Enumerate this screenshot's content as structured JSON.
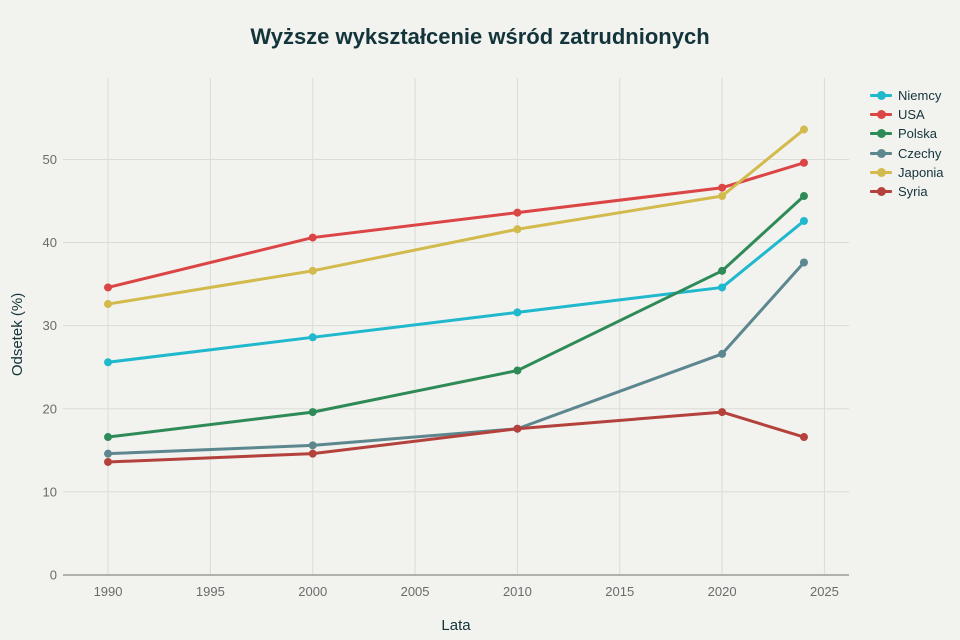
{
  "chart_data": {
    "type": "line",
    "title": "Wyższe wykształcenie wśród zatrudnionych",
    "xlabel": "Lata",
    "ylabel": "Odsetek (%)",
    "x": [
      1990,
      2000,
      2010,
      2020,
      2024
    ],
    "xlim": [
      1987.8,
      2026.2
    ],
    "ylim": [
      0,
      59.8
    ],
    "xticks": [
      1990,
      1995,
      2000,
      2005,
      2010,
      2015,
      2020,
      2025
    ],
    "yticks": [
      0,
      10,
      20,
      30,
      40,
      50
    ],
    "grid": true,
    "legend_position": "right",
    "series": [
      {
        "name": "Niemcy",
        "color": "#1fb8cd",
        "values": [
          25.6,
          28.6,
          31.6,
          34.6,
          42.6
        ]
      },
      {
        "name": "USA",
        "color": "#db4545",
        "values": [
          34.6,
          40.6,
          43.6,
          46.6,
          49.6
        ]
      },
      {
        "name": "Polska",
        "color": "#2e8b57",
        "values": [
          16.6,
          19.6,
          24.6,
          36.6,
          45.6
        ]
      },
      {
        "name": "Czechy",
        "color": "#5d878f",
        "values": [
          14.6,
          15.6,
          17.6,
          26.6,
          37.6
        ]
      },
      {
        "name": "Japonia",
        "color": "#d2ba4c",
        "values": [
          32.6,
          36.6,
          41.6,
          45.6,
          53.6
        ]
      },
      {
        "name": "Syria",
        "color": "#b4413c",
        "values": [
          13.6,
          14.6,
          17.6,
          19.6,
          16.6
        ]
      }
    ]
  }
}
